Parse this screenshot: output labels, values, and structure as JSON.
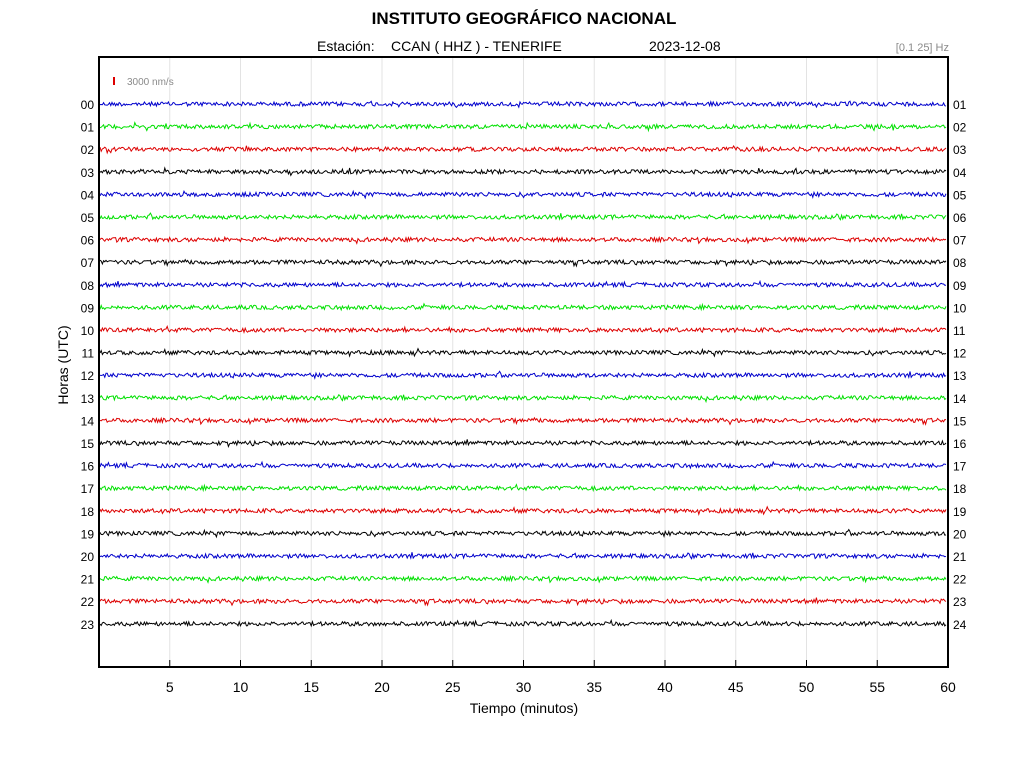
{
  "header": {
    "title": "INSTITUTO GEOGRÁFICO NACIONAL",
    "station_label": "Estación:",
    "station": "CCAN ( HHZ ) - TENERIFE",
    "date": "2023-12-08",
    "band": "[0.1 25] Hz"
  },
  "chart_data": {
    "type": "line",
    "title": "INSTITUTO GEOGRÁFICO NACIONAL",
    "xlabel": "Tiempo (minutos)",
    "ylabel": "Horas (UTC)",
    "xlim": [
      0,
      60
    ],
    "x_ticks": [
      "5",
      "10",
      "15",
      "20",
      "25",
      "30",
      "35",
      "40",
      "45",
      "50",
      "55",
      "60"
    ],
    "left_hour_labels": [
      "00",
      "01",
      "02",
      "03",
      "04",
      "05",
      "06",
      "07",
      "08",
      "09",
      "10",
      "11",
      "12",
      "13",
      "14",
      "15",
      "16",
      "17",
      "18",
      "19",
      "20",
      "21",
      "22",
      "23"
    ],
    "right_hour_labels": [
      "01",
      "02",
      "03",
      "04",
      "05",
      "06",
      "07",
      "08",
      "09",
      "10",
      "11",
      "12",
      "13",
      "14",
      "15",
      "16",
      "17",
      "18",
      "19",
      "20",
      "21",
      "22",
      "23",
      "24"
    ],
    "trace_colors": [
      "#0000cc",
      "#00e000",
      "#dd0000",
      "#000000"
    ],
    "scale_label": "3000 nm/s",
    "scale_color": "#dd0000",
    "grid": "vertical"
  }
}
